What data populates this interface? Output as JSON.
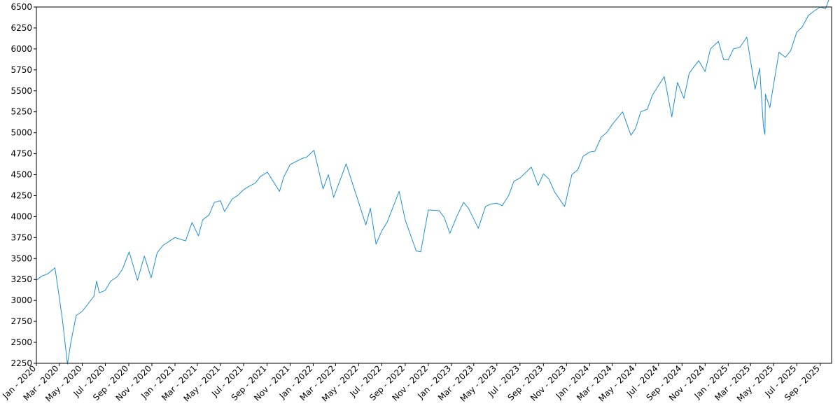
{
  "chart_data": {
    "type": "line",
    "title": "",
    "xlabel": "",
    "ylabel": "",
    "xlim": [
      "2020-01-01",
      "2025-10-01"
    ],
    "ylim": [
      2250,
      6500
    ],
    "grid": false,
    "line_color": "#1f8fd2",
    "x_ticks": [
      {
        "date": "2020-01-01",
        "label": "Jan - 2020"
      },
      {
        "date": "2020-03-01",
        "label": "Mar - 2020"
      },
      {
        "date": "2020-05-01",
        "label": "May - 2020"
      },
      {
        "date": "2020-07-01",
        "label": "Jul - 2020"
      },
      {
        "date": "2020-09-01",
        "label": "Sep - 2020"
      },
      {
        "date": "2020-11-01",
        "label": "Nov - 2020"
      },
      {
        "date": "2021-01-01",
        "label": "Jan - 2021"
      },
      {
        "date": "2021-03-01",
        "label": "Mar - 2021"
      },
      {
        "date": "2021-05-01",
        "label": "May - 2021"
      },
      {
        "date": "2021-07-01",
        "label": "Jul - 2021"
      },
      {
        "date": "2021-09-01",
        "label": "Sep - 2021"
      },
      {
        "date": "2021-11-01",
        "label": "Nov - 2021"
      },
      {
        "date": "2022-01-01",
        "label": "Jan - 2022"
      },
      {
        "date": "2022-03-01",
        "label": "Mar - 2022"
      },
      {
        "date": "2022-05-01",
        "label": "May - 2022"
      },
      {
        "date": "2022-07-01",
        "label": "Jul - 2022"
      },
      {
        "date": "2022-09-01",
        "label": "Sep - 2022"
      },
      {
        "date": "2022-11-01",
        "label": "Nov - 2022"
      },
      {
        "date": "2023-01-01",
        "label": "Jan - 2023"
      },
      {
        "date": "2023-03-01",
        "label": "Mar - 2023"
      },
      {
        "date": "2023-05-01",
        "label": "May - 2023"
      },
      {
        "date": "2023-07-01",
        "label": "Jul - 2023"
      },
      {
        "date": "2023-09-01",
        "label": "Sep - 2023"
      },
      {
        "date": "2023-11-01",
        "label": "Nov - 2023"
      },
      {
        "date": "2024-01-01",
        "label": "Jan - 2024"
      },
      {
        "date": "2024-03-01",
        "label": "Mar - 2024"
      },
      {
        "date": "2024-05-01",
        "label": "May - 2024"
      },
      {
        "date": "2024-07-01",
        "label": "Jul - 2024"
      },
      {
        "date": "2024-09-01",
        "label": "Sep - 2024"
      },
      {
        "date": "2024-11-01",
        "label": "Nov - 2024"
      },
      {
        "date": "2025-01-01",
        "label": "Jan - 2025"
      },
      {
        "date": "2025-03-01",
        "label": "Mar - 2025"
      },
      {
        "date": "2025-05-01",
        "label": "May - 2025"
      },
      {
        "date": "2025-07-01",
        "label": "Jul - 2025"
      },
      {
        "date": "2025-09-01",
        "label": "Sep - 2025"
      }
    ],
    "y_ticks": [
      2250,
      2500,
      2750,
      3000,
      3250,
      3500,
      3750,
      4000,
      4250,
      4500,
      4750,
      5000,
      5250,
      5500,
      5750,
      6000,
      6250,
      6500
    ],
    "series": [
      {
        "x": [
          "2020-01-01",
          "2020-01-15",
          "2020-02-01",
          "2020-02-19",
          "2020-03-01",
          "2020-03-10",
          "2020-03-23",
          "2020-04-01",
          "2020-04-15",
          "2020-05-01",
          "2020-05-15",
          "2020-06-01",
          "2020-06-08",
          "2020-06-15",
          "2020-07-01",
          "2020-07-15",
          "2020-08-01",
          "2020-08-15",
          "2020-09-02",
          "2020-09-24",
          "2020-10-12",
          "2020-10-30",
          "2020-11-15",
          "2020-12-01",
          "2020-12-15",
          "2021-01-01",
          "2021-01-29",
          "2021-02-15",
          "2021-03-04",
          "2021-03-15",
          "2021-04-01",
          "2021-04-15",
          "2021-05-01",
          "2021-05-12",
          "2021-06-01",
          "2021-06-15",
          "2021-07-01",
          "2021-07-15",
          "2021-08-01",
          "2021-08-15",
          "2021-09-02",
          "2021-10-04",
          "2021-10-15",
          "2021-11-01",
          "2021-12-01",
          "2021-12-15",
          "2022-01-03",
          "2022-01-27",
          "2022-02-10",
          "2022-02-24",
          "2022-03-29",
          "2022-04-15",
          "2022-05-01",
          "2022-05-20",
          "2022-06-01",
          "2022-06-16",
          "2022-07-01",
          "2022-07-15",
          "2022-08-16",
          "2022-09-01",
          "2022-09-30",
          "2022-10-12",
          "2022-11-01",
          "2022-11-30",
          "2022-12-13",
          "2022-12-28",
          "2023-01-15",
          "2023-02-02",
          "2023-02-15",
          "2023-03-13",
          "2023-04-01",
          "2023-04-15",
          "2023-05-01",
          "2023-05-15",
          "2023-06-01",
          "2023-06-15",
          "2023-07-01",
          "2023-07-31",
          "2023-08-18",
          "2023-09-01",
          "2023-09-15",
          "2023-10-01",
          "2023-10-27",
          "2023-11-15",
          "2023-12-01",
          "2023-12-15",
          "2024-01-01",
          "2024-01-15",
          "2024-02-01",
          "2024-02-15",
          "2024-03-01",
          "2024-03-28",
          "2024-04-19",
          "2024-05-01",
          "2024-05-15",
          "2024-06-01",
          "2024-06-15",
          "2024-07-16",
          "2024-08-05",
          "2024-08-20",
          "2024-09-06",
          "2024-09-20",
          "2024-10-15",
          "2024-11-01",
          "2024-11-15",
          "2024-12-06",
          "2024-12-20",
          "2025-01-01",
          "2025-01-15",
          "2025-02-01",
          "2025-02-19",
          "2025-03-13",
          "2025-03-25",
          "2025-04-04",
          "2025-04-08",
          "2025-04-09",
          "2025-04-21",
          "2025-05-01",
          "2025-05-15",
          "2025-06-01",
          "2025-06-15",
          "2025-07-01",
          "2025-07-15",
          "2025-08-01",
          "2025-08-15",
          "2025-09-01",
          "2025-09-15",
          "2025-09-25"
        ],
        "y": [
          3240,
          3290,
          3320,
          3390,
          3050,
          2760,
          2240,
          2500,
          2820,
          2870,
          2950,
          3050,
          3230,
          3090,
          3120,
          3230,
          3280,
          3370,
          3580,
          3240,
          3530,
          3270,
          3570,
          3660,
          3700,
          3750,
          3710,
          3930,
          3770,
          3960,
          4020,
          4170,
          4190,
          4060,
          4210,
          4250,
          4320,
          4360,
          4400,
          4480,
          4530,
          4300,
          4470,
          4620,
          4690,
          4710,
          4790,
          4330,
          4500,
          4230,
          4630,
          4390,
          4170,
          3900,
          4100,
          3670,
          3830,
          3930,
          4300,
          3960,
          3590,
          3580,
          4080,
          4070,
          3990,
          3800,
          4000,
          4170,
          4100,
          3860,
          4120,
          4150,
          4160,
          4130,
          4250,
          4420,
          4460,
          4590,
          4370,
          4510,
          4450,
          4290,
          4120,
          4500,
          4560,
          4720,
          4770,
          4780,
          4950,
          5000,
          5100,
          5250,
          4970,
          5050,
          5250,
          5280,
          5450,
          5670,
          5190,
          5600,
          5410,
          5710,
          5860,
          5730,
          6000,
          6090,
          5870,
          5870,
          6000,
          6020,
          6140,
          5520,
          5770,
          5070,
          4980,
          5460,
          5300,
          5580,
          5960,
          5900,
          5980,
          6200,
          6260,
          6400,
          6450,
          6500,
          6480,
          6600
        ]
      }
    ]
  }
}
